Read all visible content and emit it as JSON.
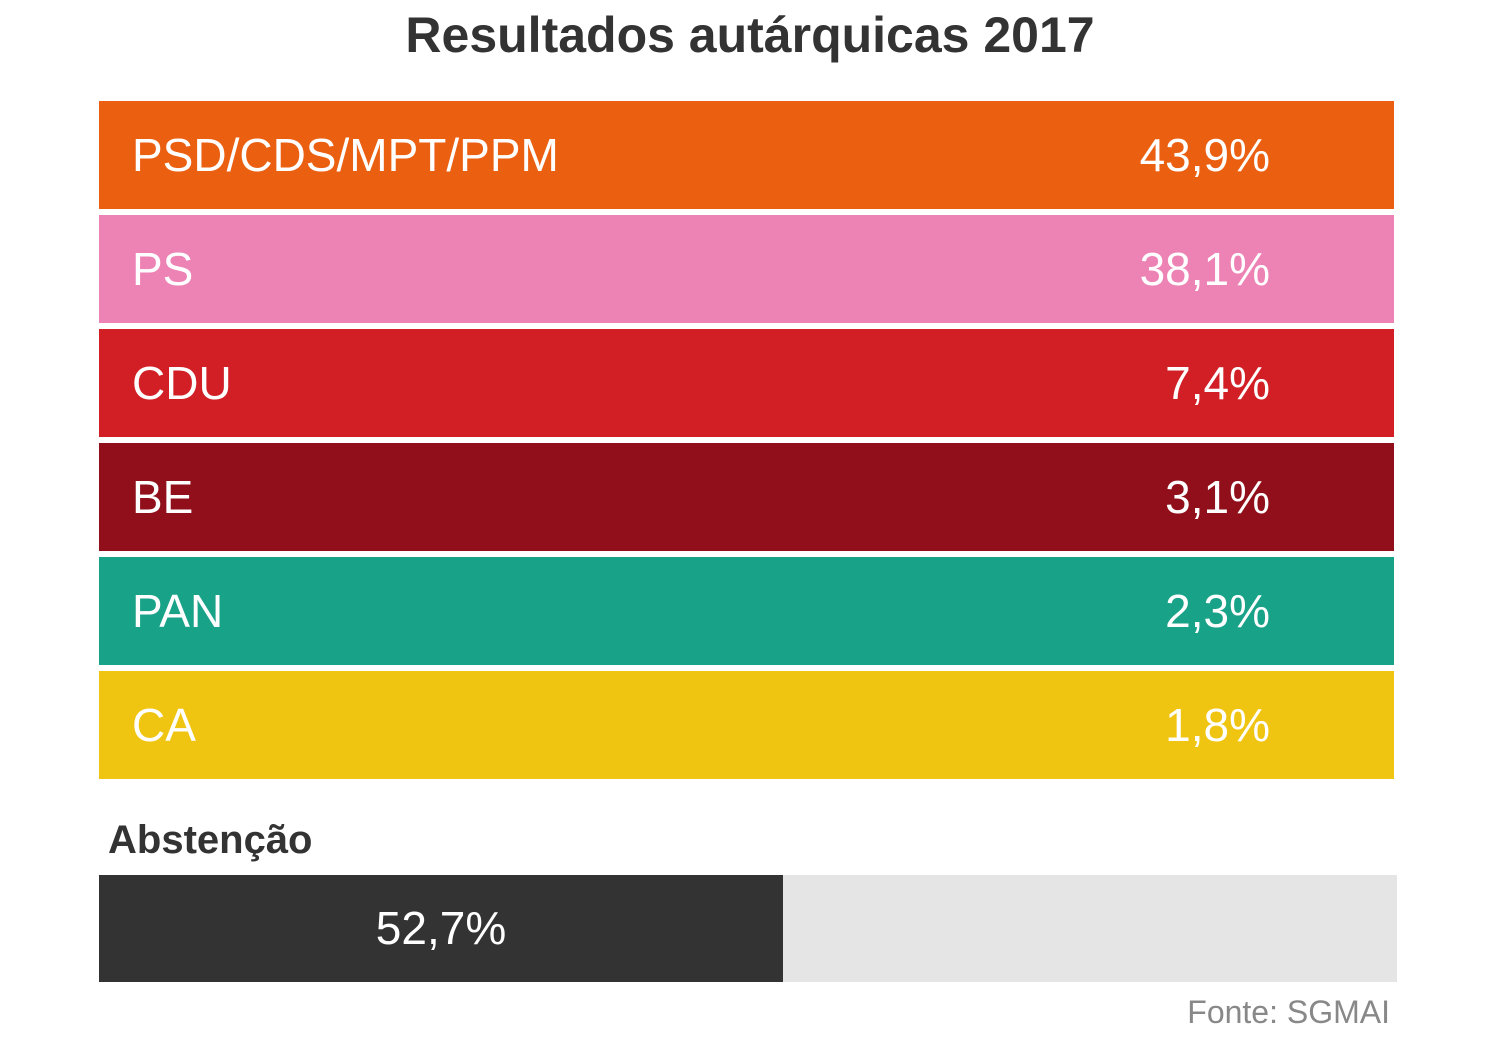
{
  "chart_data": {
    "type": "table",
    "title": "Resultados autárquicas 2017",
    "parties": [
      {
        "name": "PSD/CDS/MPT/PPM",
        "value": 43.9,
        "label": "43,9%",
        "color": "#eb5f11"
      },
      {
        "name": "PS",
        "value": 38.1,
        "label": "38,1%",
        "color": "#ed82b5"
      },
      {
        "name": "CDU",
        "value": 7.4,
        "label": "7,4%",
        "color": "#d11f25"
      },
      {
        "name": "BE",
        "value": 3.1,
        "label": "3,1%",
        "color": "#900f1a"
      },
      {
        "name": "PAN",
        "value": 2.3,
        "label": "2,3%",
        "color": "#18a288"
      },
      {
        "name": "CA",
        "value": 1.8,
        "label": "1,8%",
        "color": "#f0c512"
      }
    ],
    "abstention": {
      "label": "Abstenção",
      "value": 52.7,
      "display": "52,7%",
      "fill_color": "#333333",
      "track_color": "#e5e5e5"
    },
    "source": "Fonte: SGMAI"
  }
}
